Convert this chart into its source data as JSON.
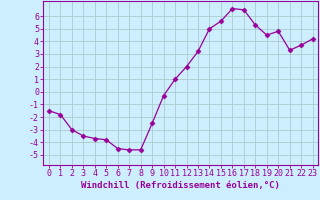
{
  "x": [
    0,
    1,
    2,
    3,
    4,
    5,
    6,
    7,
    8,
    9,
    10,
    11,
    12,
    13,
    14,
    15,
    16,
    17,
    18,
    19,
    20,
    21,
    22,
    23
  ],
  "y": [
    -1.5,
    -1.8,
    -3.0,
    -3.5,
    -3.7,
    -3.8,
    -4.5,
    -4.6,
    -4.6,
    -2.5,
    -0.3,
    1.0,
    2.0,
    3.2,
    5.0,
    5.6,
    6.6,
    6.5,
    5.3,
    4.5,
    4.8,
    3.3,
    3.7,
    4.2
  ],
  "line_color": "#990099",
  "marker": "D",
  "marker_size": 2.5,
  "bg_color": "#cceeff",
  "grid_color": "#aacccc",
  "xlabel": "Windchill (Refroidissement éolien,°C)",
  "xlabel_fontsize": 6.5,
  "tick_fontsize": 6.0,
  "xlim": [
    -0.5,
    23.5
  ],
  "ylim": [
    -5.8,
    7.2
  ],
  "yticks": [
    -5,
    -4,
    -3,
    -2,
    -1,
    0,
    1,
    2,
    3,
    4,
    5,
    6
  ],
  "xticks": [
    0,
    1,
    2,
    3,
    4,
    5,
    6,
    7,
    8,
    9,
    10,
    11,
    12,
    13,
    14,
    15,
    16,
    17,
    18,
    19,
    20,
    21,
    22,
    23
  ]
}
